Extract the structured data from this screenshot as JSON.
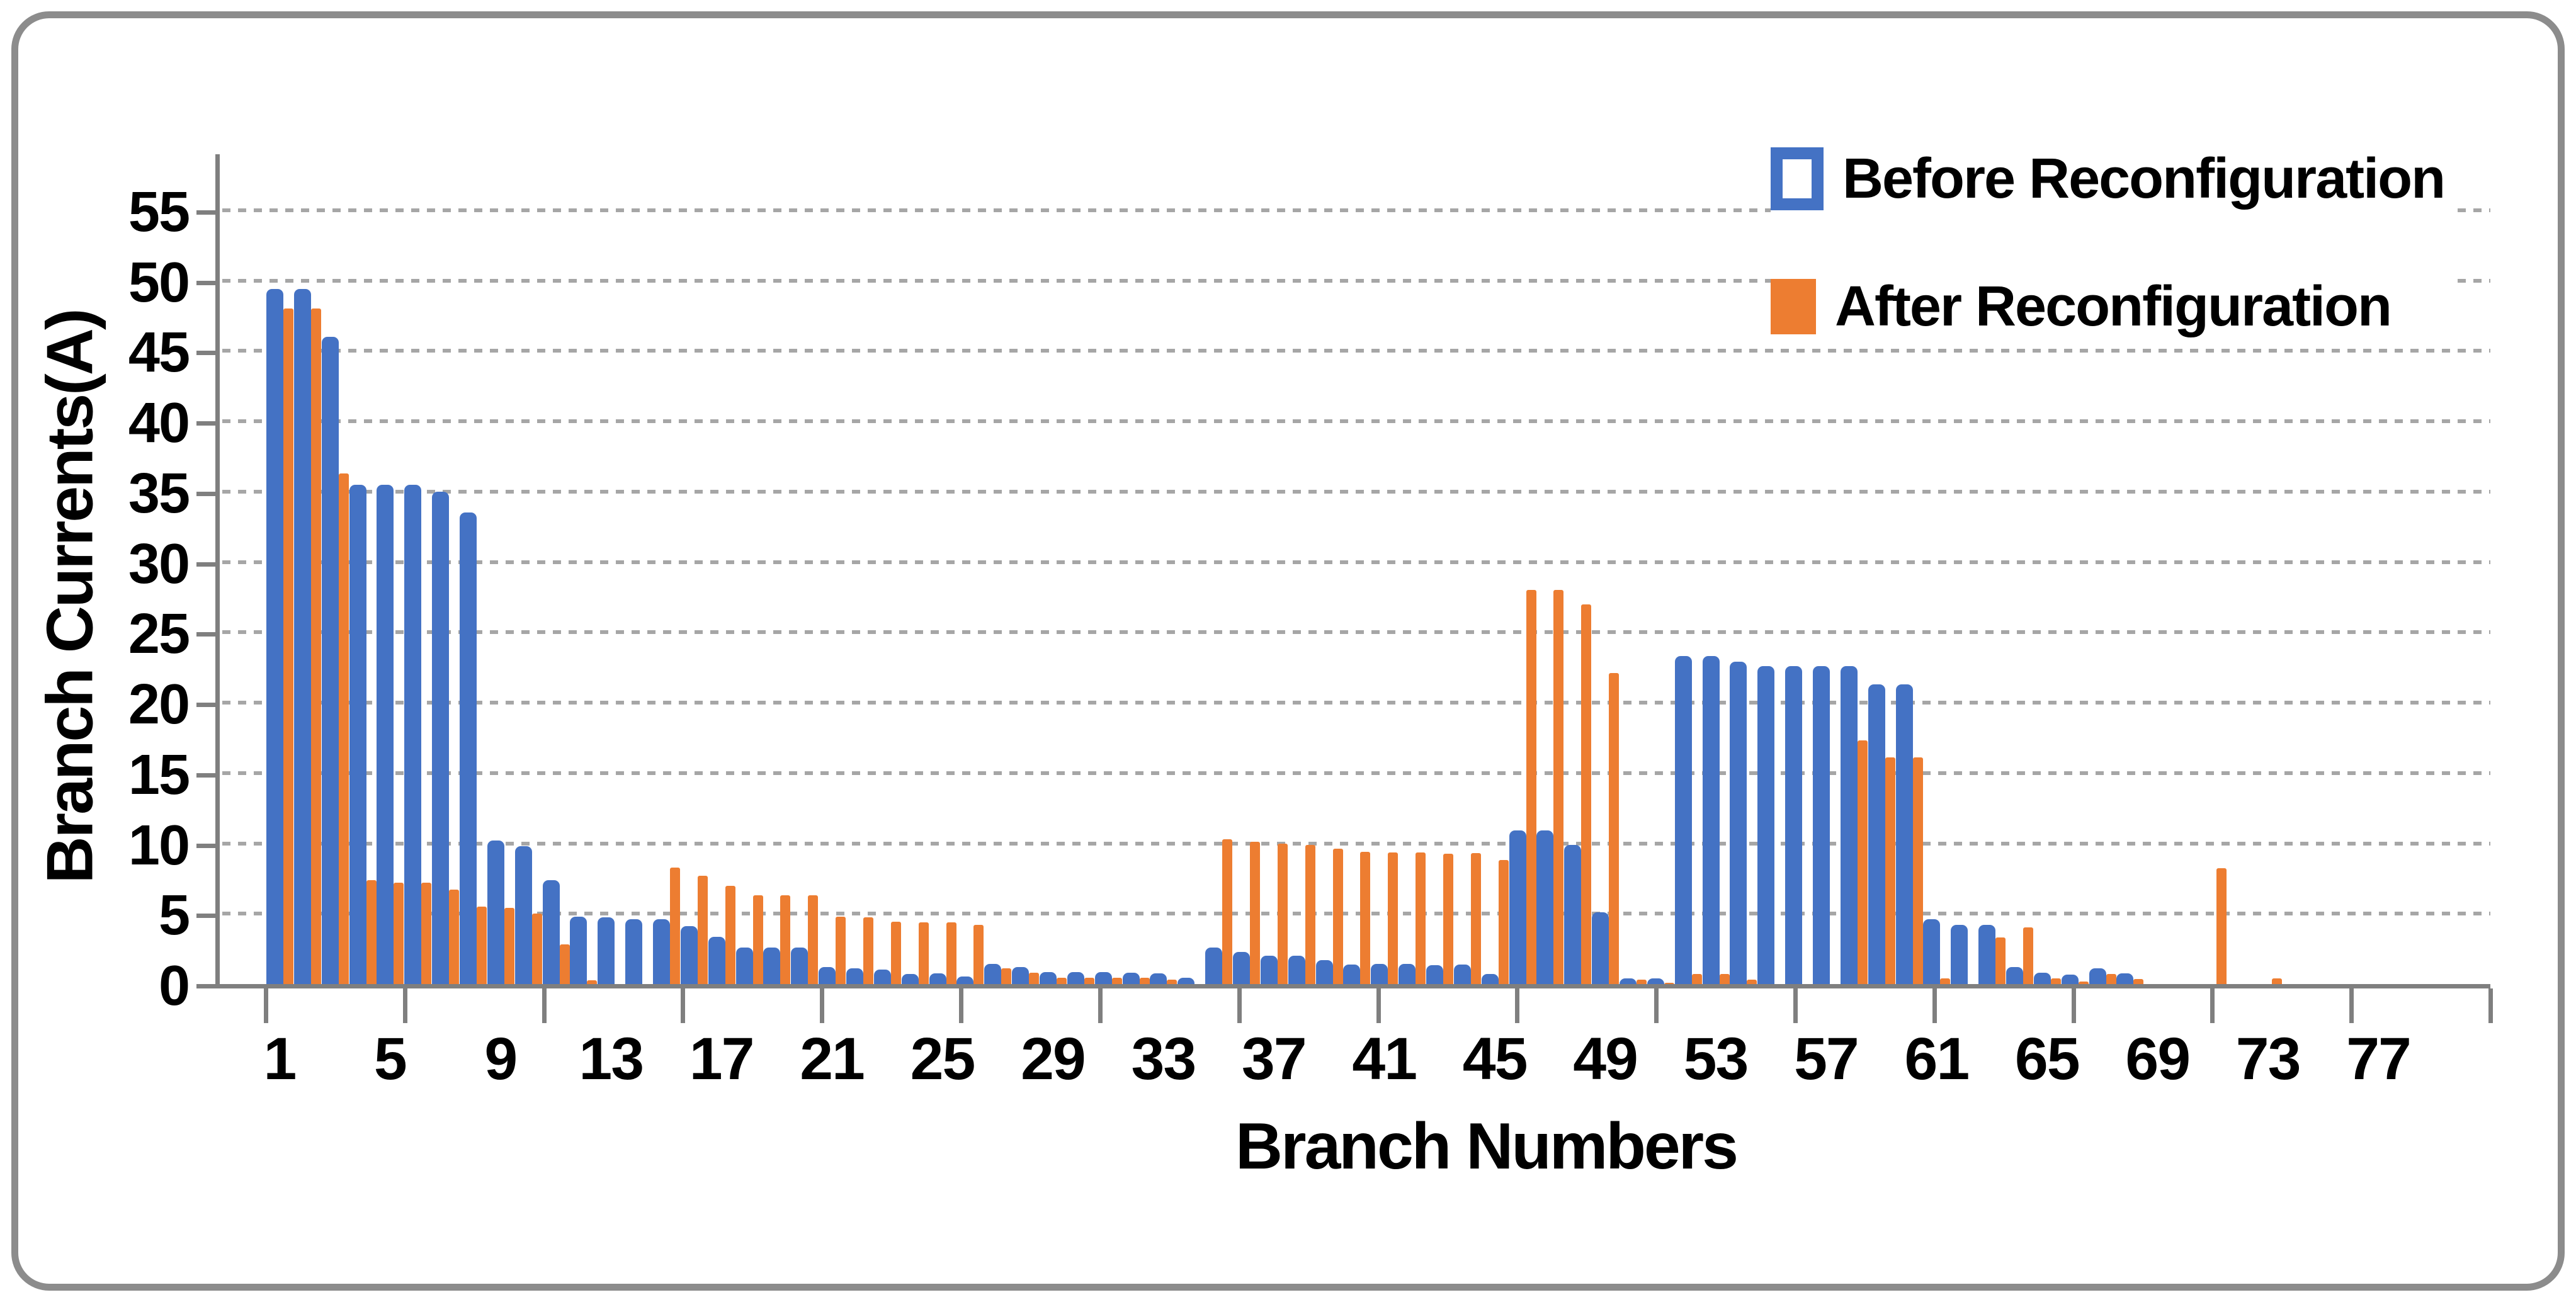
{
  "chart_data": {
    "type": "bar",
    "title": "",
    "xlabel": "Branch Numbers",
    "ylabel": "Branch Currents(A)",
    "categories": [
      1,
      2,
      3,
      4,
      5,
      6,
      7,
      8,
      9,
      10,
      11,
      12,
      13,
      14,
      15,
      16,
      17,
      18,
      19,
      20,
      21,
      22,
      23,
      24,
      25,
      26,
      27,
      28,
      29,
      30,
      31,
      32,
      33,
      34,
      35,
      36,
      37,
      38,
      39,
      40,
      41,
      42,
      43,
      44,
      45,
      46,
      47,
      48,
      49,
      50,
      51,
      52,
      53,
      54,
      55,
      56,
      57,
      58,
      59,
      60,
      61,
      62,
      63,
      64,
      65,
      66,
      67,
      68,
      69,
      70,
      71,
      72,
      73,
      74,
      75,
      76,
      77,
      78,
      79,
      80
    ],
    "series": [
      {
        "name": "Before Reconfiguration",
        "color": "#4472C4",
        "values": [
          49.4,
          49.4,
          46,
          35.5,
          35.5,
          35.5,
          35,
          33.5,
          10.2,
          9.8,
          7.4,
          4.8,
          4.75,
          4.6,
          4.6,
          4.1,
          3.35,
          2.6,
          2.6,
          2.6,
          1.2,
          1.1,
          1.05,
          0.7,
          0.75,
          0.55,
          1.45,
          1.2,
          0.85,
          0.85,
          0.85,
          0.8,
          0.75,
          0.45,
          2.6,
          2.3,
          2,
          2,
          1.7,
          1.4,
          1.45,
          1.45,
          1.35,
          1.4,
          0.7,
          10.9,
          10.9,
          9.9,
          5.1,
          0.4,
          0.4,
          23.3,
          23.3,
          22.9,
          22.6,
          22.6,
          22.6,
          22.6,
          21.3,
          21.3,
          4.6,
          4.2,
          4.2,
          1.2,
          0.8,
          0.65,
          1.1,
          0.75,
          0,
          0,
          0,
          0,
          0,
          0,
          0,
          0,
          0,
          0,
          0,
          0
        ]
      },
      {
        "name": "After Reconfiguration",
        "color": "#ED7D31",
        "values": [
          48,
          48,
          36.3,
          7.4,
          7.2,
          7.2,
          6.7,
          5.5,
          5.4,
          5,
          2.8,
          0.25,
          0,
          0,
          8.3,
          7.7,
          7,
          6.3,
          6.3,
          6.3,
          4.8,
          4.75,
          4.45,
          4.4,
          4.4,
          4.2,
          1.1,
          0.8,
          0.45,
          0.45,
          0.45,
          0.45,
          0.3,
          0,
          10.3,
          10.1,
          10,
          9.9,
          9.6,
          9.4,
          9.35,
          9.35,
          9.25,
          9.3,
          8.8,
          28,
          28,
          27,
          22.1,
          0.3,
          0.1,
          0.7,
          0.7,
          0.3,
          0,
          0,
          0,
          17.3,
          16.1,
          16.1,
          0.4,
          0,
          3.3,
          4.05,
          0.4,
          0.2,
          0.7,
          0.35,
          0,
          0,
          8.25,
          0,
          0.4,
          0,
          0,
          0,
          0,
          0,
          0,
          0
        ]
      }
    ],
    "ylim": [
      0,
      55
    ],
    "ytick_step": 5,
    "ytick_labels": [
      0,
      5,
      10,
      15,
      20,
      25,
      30,
      35,
      40,
      45,
      50,
      55
    ],
    "xtick_labels": [
      1,
      5,
      9,
      13,
      17,
      21,
      25,
      29,
      33,
      37,
      41,
      45,
      49,
      53,
      57,
      61,
      65,
      69,
      73,
      77
    ],
    "grid": "horizontal dotted",
    "legend_position": "top-right",
    "axis_color": "#7f7f7f",
    "gridline_color": "#a6a6a6",
    "text_color": "#000000",
    "background_color": "#ffffff",
    "border_color": "#8c8c8c"
  }
}
